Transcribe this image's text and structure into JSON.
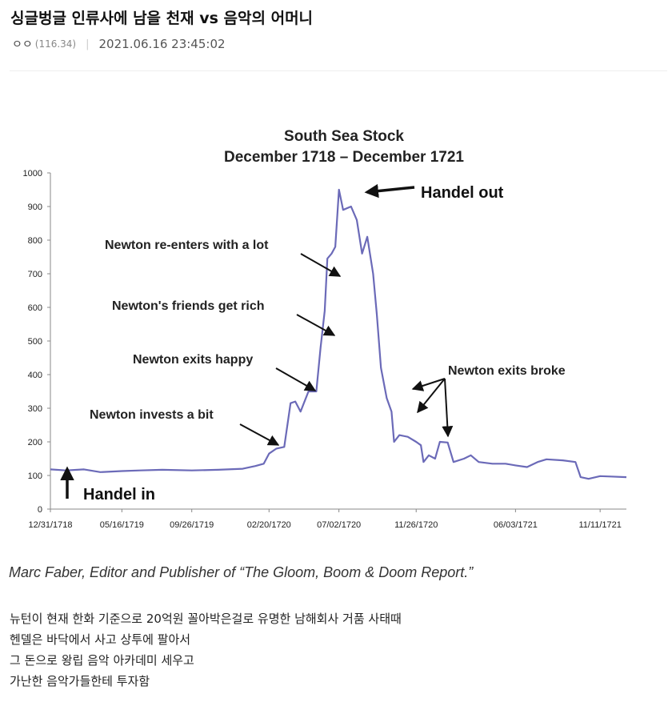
{
  "post": {
    "title": "싱글벙글 인류사에 남을 천재 vs 음악의 어머니",
    "author": "ㅇㅇ",
    "ip": "(116.34)",
    "separator": "|",
    "date": "2021.06.16 23:45:02"
  },
  "chart_data": {
    "type": "line",
    "title": "South Sea Stock",
    "subtitle": "December 1718 – December 1721",
    "xlabel": "",
    "ylabel": "",
    "ylim": [
      0,
      1000
    ],
    "xlim": [
      "1718-12-31",
      "1721-12-31"
    ],
    "y_ticks": [
      0,
      100,
      200,
      300,
      400,
      500,
      600,
      700,
      800,
      900,
      1000
    ],
    "x_ticks": [
      "1718-12-31",
      "1719-05-16",
      "1719-09-26",
      "1720-02-20",
      "1720-07-02",
      "1720-11-26",
      "1721-06-03",
      "1721-11-11"
    ],
    "x_tick_labels": [
      "12/31/1718",
      "05/16/1719",
      "09/26/1719",
      "02/20/1720",
      "07/02/1720",
      "11/26/1720",
      "06/03/1721",
      "11/11/1721"
    ],
    "grid": false,
    "legend": "none",
    "line_color": "#6b6ab8",
    "series": [
      {
        "points": [
          [
            "1718-12-31",
            118
          ],
          [
            "1719-01-30",
            115
          ],
          [
            "1719-03-05",
            118
          ],
          [
            "1719-04-05",
            110
          ],
          [
            "1719-05-16",
            113
          ],
          [
            "1719-06-20",
            115
          ],
          [
            "1719-08-01",
            117
          ],
          [
            "1719-09-26",
            115
          ],
          [
            "1719-11-15",
            117
          ],
          [
            "1720-01-01",
            120
          ],
          [
            "1720-01-25",
            128
          ],
          [
            "1720-02-10",
            135
          ],
          [
            "1720-02-20",
            165
          ],
          [
            "1720-03-05",
            180
          ],
          [
            "1720-03-20",
            185
          ],
          [
            "1720-04-01",
            315
          ],
          [
            "1720-04-10",
            320
          ],
          [
            "1720-04-20",
            290
          ],
          [
            "1720-05-05",
            350
          ],
          [
            "1720-05-20",
            350
          ],
          [
            "1720-05-28",
            480
          ],
          [
            "1720-06-05",
            590
          ],
          [
            "1720-06-10",
            745
          ],
          [
            "1720-06-18",
            760
          ],
          [
            "1720-06-25",
            780
          ],
          [
            "1720-07-02",
            950
          ],
          [
            "1720-07-10",
            890
          ],
          [
            "1720-07-25",
            900
          ],
          [
            "1720-08-05",
            860
          ],
          [
            "1720-08-15",
            760
          ],
          [
            "1720-08-25",
            810
          ],
          [
            "1720-09-05",
            700
          ],
          [
            "1720-09-12",
            580
          ],
          [
            "1720-09-20",
            420
          ],
          [
            "1720-10-01",
            330
          ],
          [
            "1720-10-10",
            290
          ],
          [
            "1720-10-15",
            200
          ],
          [
            "1720-10-25",
            220
          ],
          [
            "1720-11-10",
            215
          ],
          [
            "1720-11-26",
            200
          ],
          [
            "1720-12-05",
            190
          ],
          [
            "1720-12-10",
            140
          ],
          [
            "1720-12-20",
            160
          ],
          [
            "1721-01-01",
            150
          ],
          [
            "1721-01-10",
            200
          ],
          [
            "1721-01-25",
            198
          ],
          [
            "1721-02-05",
            140
          ],
          [
            "1721-02-25",
            150
          ],
          [
            "1721-03-10",
            160
          ],
          [
            "1721-03-25",
            140
          ],
          [
            "1721-04-20",
            135
          ],
          [
            "1721-05-15",
            135
          ],
          [
            "1721-06-03",
            130
          ],
          [
            "1721-06-25",
            125
          ],
          [
            "1721-07-15",
            140
          ],
          [
            "1721-08-01",
            148
          ],
          [
            "1721-09-01",
            145
          ],
          [
            "1721-09-25",
            140
          ],
          [
            "1721-10-05",
            95
          ],
          [
            "1721-10-20",
            90
          ],
          [
            "1721-11-11",
            98
          ],
          [
            "1721-12-01",
            97
          ],
          [
            "1721-12-31",
            95
          ]
        ]
      }
    ],
    "annotations": [
      {
        "text": "Handel in",
        "date": "1719-01-15",
        "value": 105,
        "style": "big"
      },
      {
        "text": "Newton invests a bit",
        "date": "1720-02-20",
        "value": 185,
        "style": "normal"
      },
      {
        "text": "Newton exits happy",
        "date": "1720-05-05",
        "value": 350,
        "style": "normal"
      },
      {
        "text": "Newton's friends get rich",
        "date": "1720-06-01",
        "value": 520,
        "style": "normal"
      },
      {
        "text": "Newton re-enters with a lot",
        "date": "1720-06-10",
        "value": 700,
        "style": "normal"
      },
      {
        "text": "Handel out",
        "date": "1720-07-02",
        "value": 950,
        "style": "big"
      },
      {
        "text": "Newton exits broke",
        "date": "1720-10-20",
        "value": 280,
        "style": "normal"
      }
    ]
  },
  "caption": "Marc Faber, Editor and Publisher of “The Gloom, Boom & Doom Report.”",
  "body_lines": [
    "뉴턴이 현재 한화 기준으로 20억원 꼴아박은걸로 유명한 남해회사 거품 사태때",
    "헨델은 바닥에서 사고 상투에 팔아서",
    "그 돈으로 왕립 음악 아카데미 세우고",
    "가난한 음악가들한테 투자함"
  ]
}
